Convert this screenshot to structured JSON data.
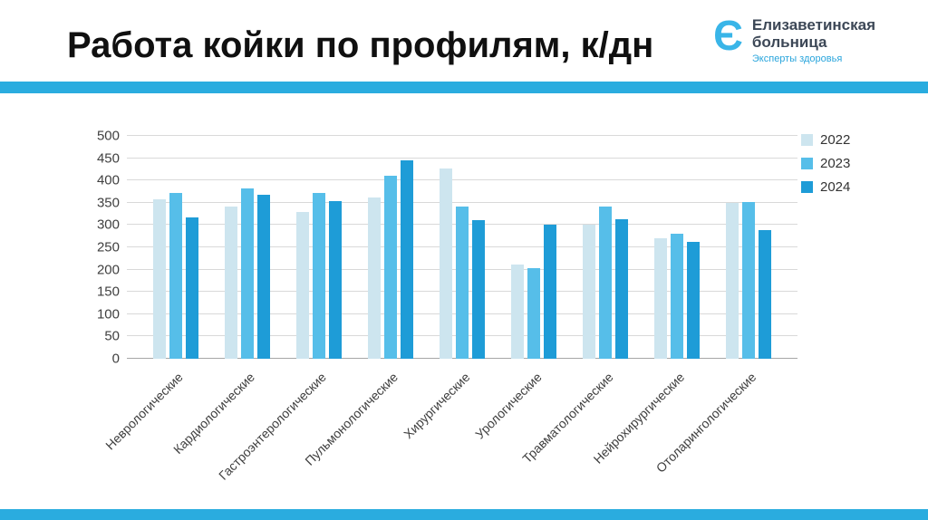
{
  "slide": {
    "title": "Работа койки по профилям, к/дн",
    "logo": {
      "icon": "Є",
      "name_line1": "Елизаветинская",
      "name_line2": "больница",
      "tagline": "Эксперты здоровья"
    },
    "accent_color": "#2aacdf"
  },
  "chart_data": {
    "type": "bar",
    "title": "Работа койки по профилям, к/дн",
    "categories": [
      "Неврологические",
      "Кардиологические",
      "Гастроэнтерологические",
      "Пульмонологические",
      "Хирургические",
      "Урологические",
      "Травматологические",
      "Нейрохирургические",
      "Отоларингологические"
    ],
    "series": [
      {
        "name": "2022",
        "color": "#cde5ef",
        "values": [
          358,
          341,
          329,
          362,
          427,
          212,
          300,
          270,
          349
        ]
      },
      {
        "name": "2023",
        "color": "#56bee9",
        "values": [
          372,
          382,
          372,
          411,
          342,
          204,
          342,
          281,
          351
        ]
      },
      {
        "name": "2024",
        "color": "#1e9cd7",
        "values": [
          318,
          368,
          353,
          446,
          310,
          300,
          313,
          262,
          288
        ]
      }
    ],
    "xlabel": "",
    "ylabel": "",
    "ylim": [
      0,
      500
    ],
    "ytick_step": 50,
    "grid": true,
    "legend_position": "top-right"
  }
}
